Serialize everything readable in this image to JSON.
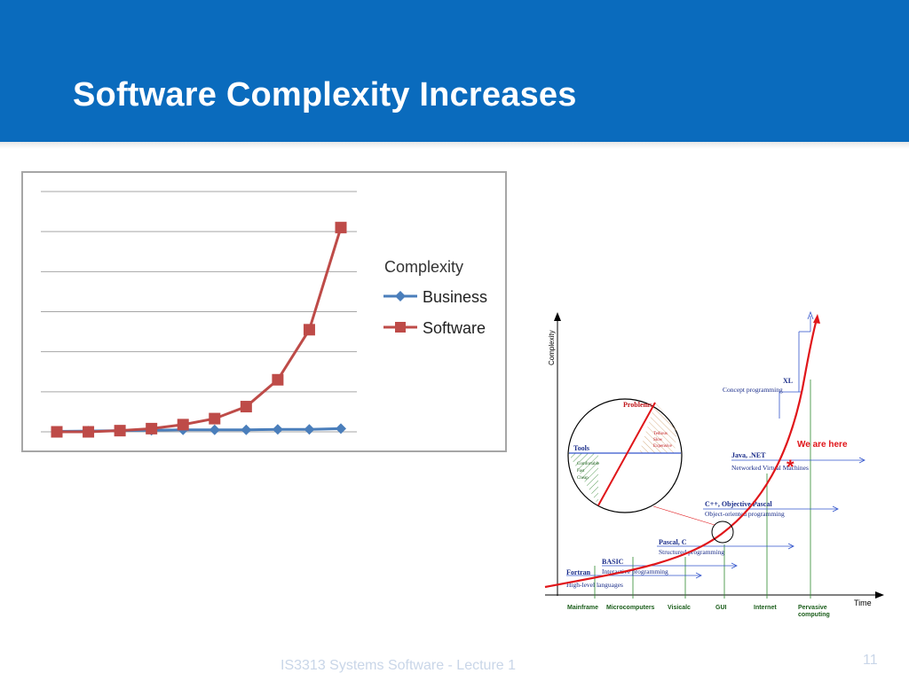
{
  "slide": {
    "title": "Software Complexity Increases",
    "footer": "IS3313 Systems Software - Lecture 1",
    "page_number": "11",
    "colors": {
      "header": "#0a6bbd",
      "business": "#4a7ebb",
      "software": "#be4b48",
      "curve": "#e0161a"
    }
  },
  "chart_data": [
    {
      "type": "line",
      "title": "",
      "xlabel": "",
      "ylabel": "",
      "legend_title": "Complexity",
      "legend_position": "right",
      "grid": true,
      "x": [
        1,
        2,
        3,
        4,
        5,
        6,
        7,
        8,
        9,
        10
      ],
      "ylim": [
        0,
        6
      ],
      "series": [
        {
          "name": "Business",
          "marker": "diamond",
          "color": "#4a7ebb",
          "values": [
            0.01,
            0.02,
            0.03,
            0.04,
            0.05,
            0.05,
            0.05,
            0.06,
            0.06,
            0.08
          ]
        },
        {
          "name": "Software",
          "marker": "square",
          "color": "#be4b48",
          "values": [
            0.0,
            0.0,
            0.03,
            0.08,
            0.18,
            0.33,
            0.63,
            1.3,
            2.55,
            5.1
          ]
        }
      ]
    },
    {
      "type": "line",
      "xlabel": "Time",
      "ylabel": "Complexity",
      "x_ticks": [
        "Mainframe",
        "Microcomputers",
        "Visicalc",
        "GUI",
        "Internet",
        "Pervasive computing"
      ],
      "annotation": "We are here",
      "eras": [
        {
          "name": "Fortran",
          "desc": "High-level languages"
        },
        {
          "name": "BASIC",
          "desc": "Interactive programming"
        },
        {
          "name": "Pascal, C",
          "desc": "Structured programming"
        },
        {
          "name": "C++, Objective Pascal",
          "desc": "Object-oriented programming"
        },
        {
          "name": "Java, .NET",
          "desc": "Networked Virtual Machines"
        },
        {
          "name": "XL",
          "desc": "Concept programming"
        }
      ],
      "inset": {
        "problems_label": "Problems",
        "tools_label": "Tools",
        "problems_items": [
          "Tedious",
          "Slow",
          "Expensive"
        ],
        "tools_items": [
          "Comfortable",
          "Fast",
          "Cheap"
        ]
      }
    }
  ]
}
